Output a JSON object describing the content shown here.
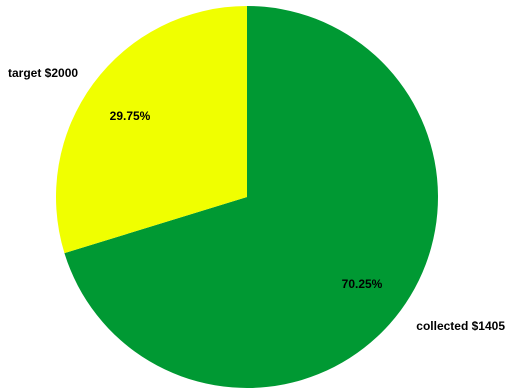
{
  "chart_data": {
    "type": "pie",
    "title": "",
    "slices": [
      {
        "label": "collected $1405",
        "value": 1405,
        "percent_label": "70.25%",
        "color": "#009933"
      },
      {
        "label": "target $2000",
        "value": 595,
        "percent_label": "29.75%",
        "color": "#f0ff00"
      }
    ],
    "start": "12 o'clock",
    "direction": "clockwise",
    "legend": "none"
  }
}
